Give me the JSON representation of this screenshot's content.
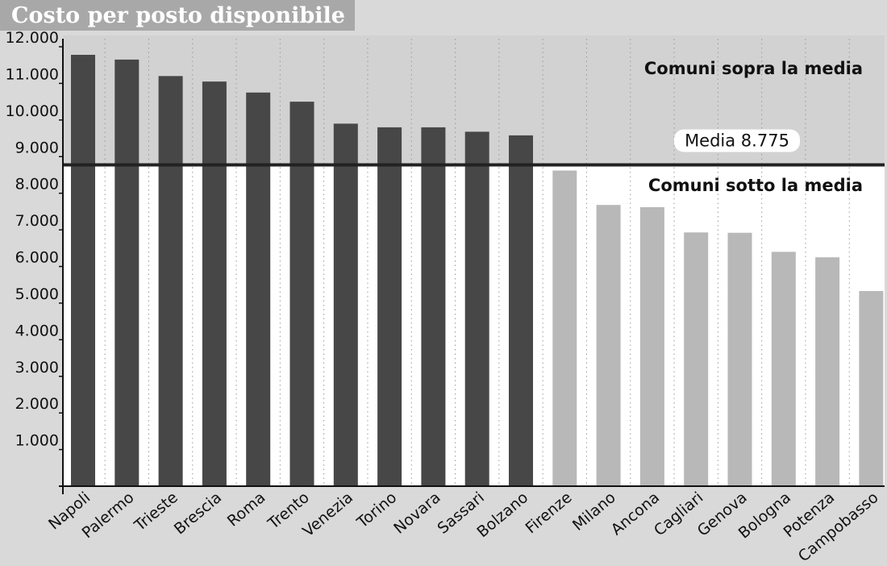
{
  "chart_data": {
    "type": "bar",
    "title": "Costo per posto disponibile",
    "categories": [
      "Napoli",
      "Palermo",
      "Trieste",
      "Brescia",
      "Roma",
      "Trento",
      "Venezia",
      "Torino",
      "Novara",
      "Sassari",
      "Bolzano",
      "Firenze",
      "Milano",
      "Ancona",
      "Cagliari",
      "Genova",
      "Bologna",
      "Potenza",
      "Campobasso"
    ],
    "values": [
      11780,
      11650,
      11200,
      11050,
      10750,
      10500,
      9900,
      9800,
      9800,
      9680,
      9580,
      8620,
      7680,
      7620,
      6930,
      6920,
      6400,
      6250,
      5330
    ],
    "ylim": [
      0,
      12000
    ],
    "yticks": [
      1000,
      2000,
      3000,
      4000,
      5000,
      6000,
      7000,
      8000,
      9000,
      10000,
      11000,
      12000
    ],
    "ytick_labels": [
      "1.000",
      "2.000",
      "3.000",
      "4.000",
      "5.000",
      "6.000",
      "7.000",
      "8.000",
      "9.000",
      "10.000",
      "11.000",
      "12.000"
    ],
    "average": {
      "value": 8775,
      "label": "Media 8.775"
    },
    "annotations": {
      "above": "Comuni sopra la media",
      "below": "Comuni sotto la media"
    },
    "colors": {
      "above_bar": "#474747",
      "below_bar": "#b8b8b8",
      "above_region": "#d2d2d2",
      "below_region": "#ffffff",
      "outer_background": "#d9d9d9",
      "title_band": "#a8a8a8",
      "title_text": "#ffffff",
      "average_line": "#222222",
      "grid": "#999999"
    },
    "grid": "vertical-dotted"
  }
}
